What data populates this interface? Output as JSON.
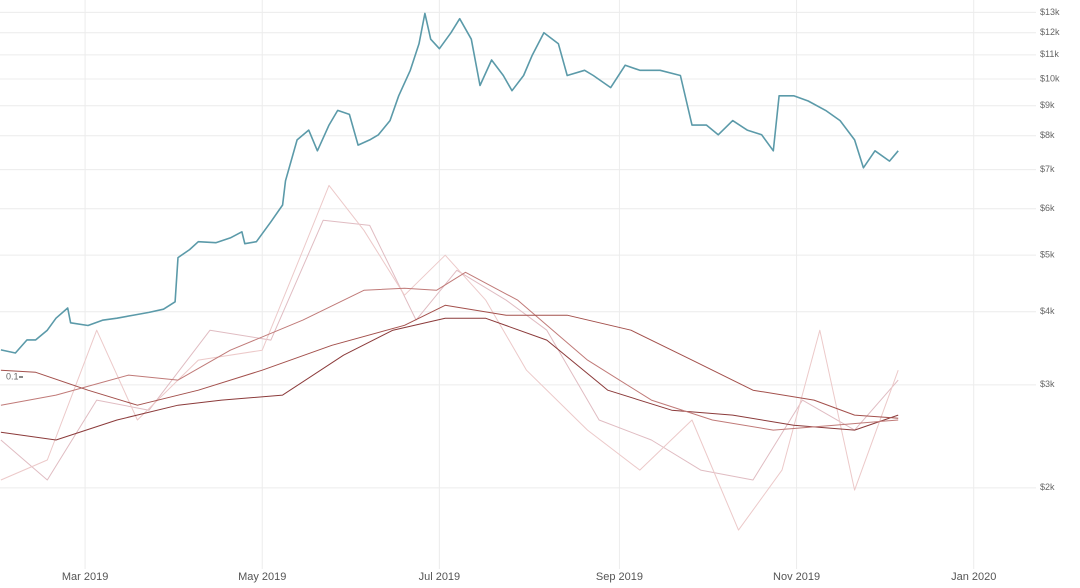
{
  "chart_data": {
    "type": "line",
    "log_scale": true,
    "grid": true,
    "xlim": [
      29.7,
      401.6
    ],
    "xticks": [
      {
        "value": 59,
        "label": "Mar 2019"
      },
      {
        "value": 120,
        "label": "May 2019"
      },
      {
        "value": 181,
        "label": "Jul 2019"
      },
      {
        "value": 243,
        "label": "Sep 2019"
      },
      {
        "value": 304,
        "label": "Nov 2019"
      },
      {
        "value": 365,
        "label": "Jan 2020"
      }
    ],
    "ylim": [
      1375,
      13650
    ],
    "yticks": [
      {
        "value": 13000,
        "label": "$13k"
      },
      {
        "value": 12000,
        "label": "$12k"
      },
      {
        "value": 11000,
        "label": "$11k"
      },
      {
        "value": 10000,
        "label": "$10k"
      },
      {
        "value": 9000,
        "label": "$9k"
      },
      {
        "value": 8000,
        "label": "$8k"
      },
      {
        "value": 7000,
        "label": "$7k"
      },
      {
        "value": 6000,
        "label": "$6k"
      },
      {
        "value": 5000,
        "label": "$5k"
      },
      {
        "value": 4000,
        "label": "$4k"
      },
      {
        "value": 3000,
        "label": "$3k"
      },
      {
        "value": 2000,
        "label": "$2k"
      }
    ],
    "y2lim": [
      0,
      0.283
    ],
    "y2ticks": [
      0.1
    ],
    "series": [
      {
        "color": "#5b9aa9",
        "width": 1.6,
        "x": [
          30,
          35,
          39,
          42,
          46,
          49,
          53,
          54,
          60,
          65,
          70,
          76,
          81,
          86,
          90,
          91,
          95,
          98,
          104,
          109,
          113,
          114,
          118,
          123,
          127,
          128,
          132,
          136,
          139,
          143,
          146,
          150,
          153,
          157,
          160,
          164,
          167,
          171,
          174,
          176,
          178,
          181,
          185,
          188,
          192,
          195,
          199,
          203,
          206,
          210,
          213,
          217,
          222,
          225,
          231,
          234,
          240,
          245,
          250,
          257,
          264,
          268,
          273,
          277,
          282,
          287,
          292,
          296,
          298,
          303,
          308,
          314,
          319,
          324,
          327,
          331,
          336,
          339
        ],
        "values": [
          3443,
          3400,
          3580,
          3580,
          3720,
          3900,
          4060,
          3830,
          3790,
          3870,
          3900,
          3950,
          3990,
          4040,
          4160,
          4950,
          5110,
          5270,
          5250,
          5350,
          5480,
          5230,
          5270,
          5700,
          6090,
          6700,
          7870,
          8180,
          7540,
          8340,
          8840,
          8700,
          7710,
          7870,
          8030,
          8490,
          9360,
          10350,
          11490,
          12950,
          11700,
          11270,
          12000,
          12680,
          11700,
          9750,
          10780,
          10140,
          9550,
          10140,
          10990,
          12000,
          11490,
          10140,
          10350,
          10140,
          9670,
          10560,
          10350,
          10350,
          10140,
          8340,
          8340,
          8030,
          8490,
          8180,
          8030,
          7540,
          9360,
          9360,
          9170,
          8840,
          8490,
          7870,
          7050,
          7540,
          7240,
          7540
        ]
      },
      {
        "color": "#a3504c",
        "width": 1,
        "axis": "y2",
        "x": [
          30,
          42,
          60,
          77,
          98,
          120,
          144,
          169,
          183,
          204,
          225,
          247,
          268,
          289,
          310,
          324,
          339
        ],
        "values": [
          0.1033,
          0.1023,
          0.0936,
          0.0863,
          0.0936,
          0.1033,
          0.1154,
          0.1251,
          0.1348,
          0.13,
          0.13,
          0.1227,
          0.1082,
          0.0936,
          0.0888,
          0.0815,
          0.08
        ]
      },
      {
        "color": "#c07a78",
        "width": 1,
        "axis": "y2",
        "x": [
          30,
          49,
          74,
          91,
          109,
          134,
          155,
          169,
          180,
          190,
          208,
          232,
          254,
          275,
          296,
          317,
          339
        ],
        "values": [
          0.0863,
          0.0912,
          0.1009,
          0.0985,
          0.113,
          0.1276,
          0.1421,
          0.1431,
          0.1421,
          0.1508,
          0.1373,
          0.1082,
          0.0888,
          0.0791,
          0.0742,
          0.0766,
          0.0791
        ]
      },
      {
        "color": "#8b3a3a",
        "width": 1,
        "axis": "y2",
        "x": [
          30,
          49,
          70,
          91,
          106,
          127,
          148,
          165,
          183,
          197,
          218,
          239,
          261,
          282,
          303,
          324,
          339
        ],
        "values": [
          0.0732,
          0.0694,
          0.0791,
          0.0863,
          0.0888,
          0.0912,
          0.1106,
          0.1227,
          0.1285,
          0.1285,
          0.1179,
          0.0936,
          0.0839,
          0.0815,
          0.0766,
          0.0742,
          0.0815
        ]
      },
      {
        "color": "#ecc9c9",
        "width": 1,
        "axis": "y2",
        "x": [
          30,
          46,
          63,
          77,
          98,
          120,
          134,
          143,
          155,
          169,
          183,
          197,
          211,
          232,
          250,
          268,
          284,
          299,
          312,
          324,
          339
        ],
        "values": [
          0.05,
          0.0597,
          0.1227,
          0.0791,
          0.1082,
          0.113,
          0.1615,
          0.193,
          0.1712,
          0.1397,
          0.1591,
          0.1373,
          0.1033,
          0.0742,
          0.0548,
          0.0791,
          0.0257,
          0.0548,
          0.1227,
          0.0451,
          0.1033
        ]
      },
      {
        "color": "#e0bcc2",
        "width": 1,
        "axis": "y2",
        "x": [
          30,
          46,
          63,
          81,
          102,
          123,
          141,
          157,
          173,
          187,
          204,
          218,
          236,
          254,
          271,
          289,
          306,
          324,
          339
        ],
        "values": [
          0.0694,
          0.05,
          0.0888,
          0.0839,
          0.1227,
          0.1179,
          0.1761,
          0.1736,
          0.1276,
          0.1518,
          0.1373,
          0.1227,
          0.0791,
          0.0694,
          0.0548,
          0.05,
          0.0888,
          0.0742,
          0.0985
        ]
      }
    ]
  }
}
